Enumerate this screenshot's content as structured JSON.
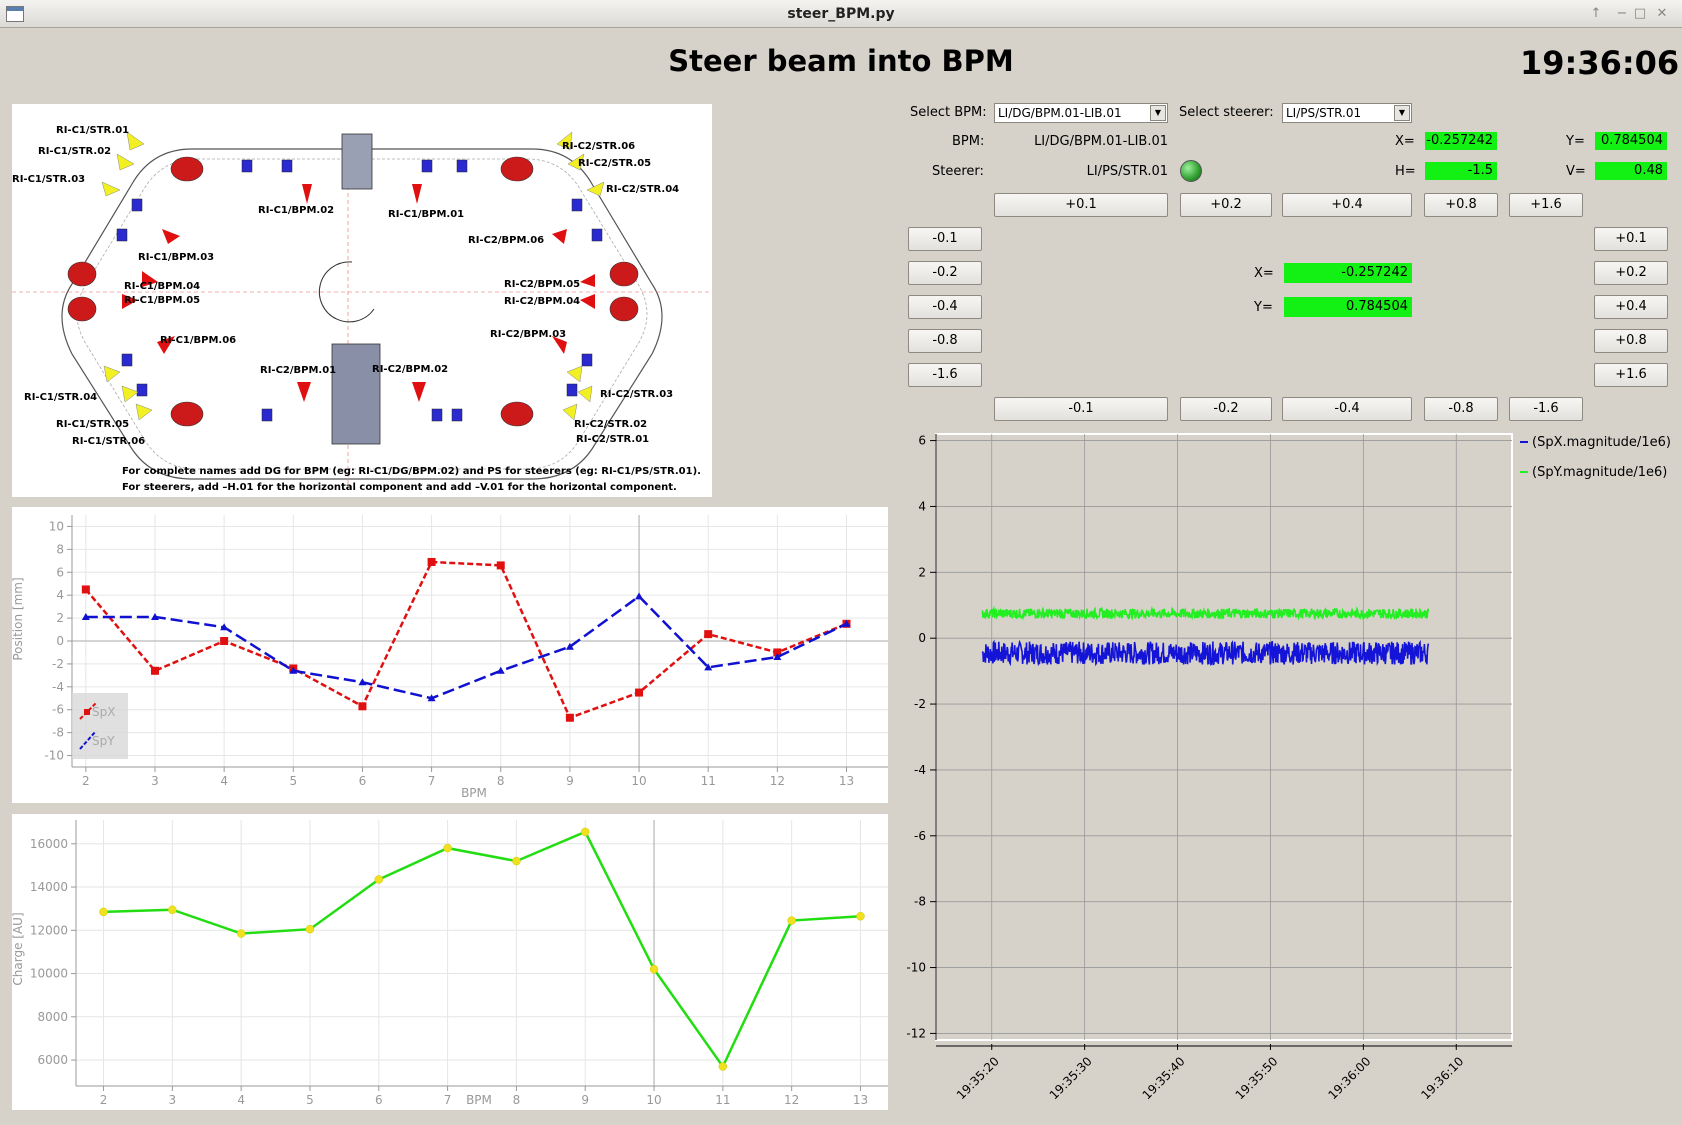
{
  "window": {
    "title": "steer_BPM.py"
  },
  "header": {
    "title": "Steer beam into BPM",
    "clock": "19:36:06"
  },
  "controls": {
    "select_bpm_label": "Select BPM:",
    "select_bpm_value": "LI/DG/BPM.01-LIB.01",
    "select_steerer_label": "Select steerer:",
    "select_steerer_value": "LI/PS/STR.01",
    "bpm_label": "BPM:",
    "bpm_value": "LI/DG/BPM.01-LIB.01",
    "steerer_label": "Steerer:",
    "steerer_value": "LI/PS/STR.01",
    "x_label": "X=",
    "x_value": "-0.257242",
    "y_label": "Y=",
    "y_value": "0.784504",
    "h_label": "H=",
    "h_value": "-1.5",
    "v_label": "V=",
    "v_value": "0.48",
    "status_led_color": "#2e9e2e",
    "center_x_label": "X=",
    "center_x_value": "-0.257242",
    "center_y_label": "Y=",
    "center_y_value": "0.784504",
    "top_buttons": [
      "+0.1",
      "+0.2",
      "+0.4",
      "+0.8",
      "+1.6"
    ],
    "bottom_buttons": [
      "-0.1",
      "-0.2",
      "-0.4",
      "-0.8",
      "-1.6"
    ],
    "left_buttons": [
      "-0.1",
      "-0.2",
      "-0.4",
      "-0.8",
      "-1.6"
    ],
    "right_buttons": [
      "+0.1",
      "+0.2",
      "+0.4",
      "+0.8",
      "+1.6"
    ]
  },
  "ring_diagram": {
    "labels": [
      "RI-C1/STR.01",
      "RI-C1/STR.02",
      "RI-C1/STR.03",
      "RI-C1/BPM.03",
      "RI-C1/BPM.04",
      "RI-C1/BPM.05",
      "RI-C1/BPM.06",
      "RI-C1/STR.04",
      "RI-C1/STR.05",
      "RI-C1/STR.06",
      "RI-C1/BPM.02",
      "RI-C1/BPM.01",
      "RI-C2/STR.06",
      "RI-C2/STR.05",
      "RI-C2/STR.04",
      "RI-C2/BPM.06",
      "RI-C2/BPM.05",
      "RI-C2/BPM.04",
      "RI-C2/BPM.03",
      "RI-C2/BPM.01",
      "RI-C2/BPM.02",
      "RI-C2/STR.03",
      "RI-C2/STR.02",
      "RI-C2/STR.01"
    ],
    "note_line1": "For complete names add DG for BPM (eg: RI-C1/DG/BPM.02) and PS for steerers (eg: RI-C1/PS/STR.01).",
    "note_line2": "For steerers, add –H.01 for the horizontal component and add –V.01 for the horizontal component."
  },
  "chart_data": [
    {
      "type": "line",
      "xlabel": "BPM",
      "ylabel": "Position [mm]",
      "x": [
        2,
        3,
        4,
        5,
        6,
        7,
        8,
        9,
        10,
        11,
        12,
        13
      ],
      "xlim": [
        1.8,
        13.6
      ],
      "ylim": [
        -11,
        11
      ],
      "xticks": [
        2,
        3,
        4,
        5,
        6,
        7,
        8,
        9,
        10,
        11,
        12,
        13
      ],
      "yticks": [
        10,
        8,
        6,
        4,
        2,
        0,
        -2,
        -4,
        -6,
        -8,
        -10
      ],
      "grid": true,
      "legend_placement": "bottom-left",
      "series": [
        {
          "name": "SpX",
          "color": "#e01010",
          "values": [
            4.5,
            -2.6,
            0.0,
            -2.4,
            -5.7,
            6.9,
            6.6,
            -6.7,
            -4.5,
            0.6,
            -1.0,
            1.5
          ]
        },
        {
          "name": "SpY",
          "color": "#1010d0",
          "values": [
            2.1,
            2.1,
            1.2,
            -2.6,
            -3.6,
            -5.0,
            -2.6,
            -0.5,
            3.9,
            -2.3,
            -1.4,
            1.5
          ]
        }
      ]
    },
    {
      "type": "line",
      "xlabel": "BPM",
      "ylabel": "Charge [AU]",
      "x": [
        2,
        3,
        4,
        5,
        6,
        7,
        8,
        9,
        10,
        11,
        12,
        13
      ],
      "xlim": [
        1.6,
        13.4
      ],
      "ylim": [
        4800,
        17100
      ],
      "xticks": [
        2,
        3,
        4,
        5,
        6,
        7,
        8,
        9,
        10,
        11,
        12,
        13
      ],
      "yticks": [
        16000,
        14000,
        12000,
        10000,
        8000,
        6000
      ],
      "grid": true,
      "series": [
        {
          "color": "#22dd11",
          "marker_color": "#f0e020",
          "values": [
            12850,
            12950,
            11850,
            12050,
            14350,
            15800,
            15200,
            16550,
            10200,
            5700,
            12450,
            12650
          ]
        }
      ]
    },
    {
      "type": "line",
      "xlabel": "",
      "ylabel": "",
      "ylim": [
        -12.2,
        6.2
      ],
      "yticks": [
        6,
        4,
        2,
        0,
        -2,
        -4,
        -6,
        -8,
        -10,
        -12
      ],
      "xtick_labels": [
        "19:35:20",
        "19:35:30",
        "19:35:40",
        "19:35:50",
        "19:36:00",
        "19:36:10"
      ],
      "grid": true,
      "legend_placement": "right",
      "series": [
        {
          "name": "(SpX.magnitude/1e6)",
          "color": "#1414d8",
          "mean": -0.45,
          "amplitude": 0.35,
          "time_start": "19:35:19",
          "time_end": "19:36:07"
        },
        {
          "name": "(SpY.magnitude/1e6)",
          "color": "#22ee22",
          "mean": 0.75,
          "amplitude": 0.15,
          "time_start": "19:35:19",
          "time_end": "19:36:07"
        }
      ]
    }
  ]
}
